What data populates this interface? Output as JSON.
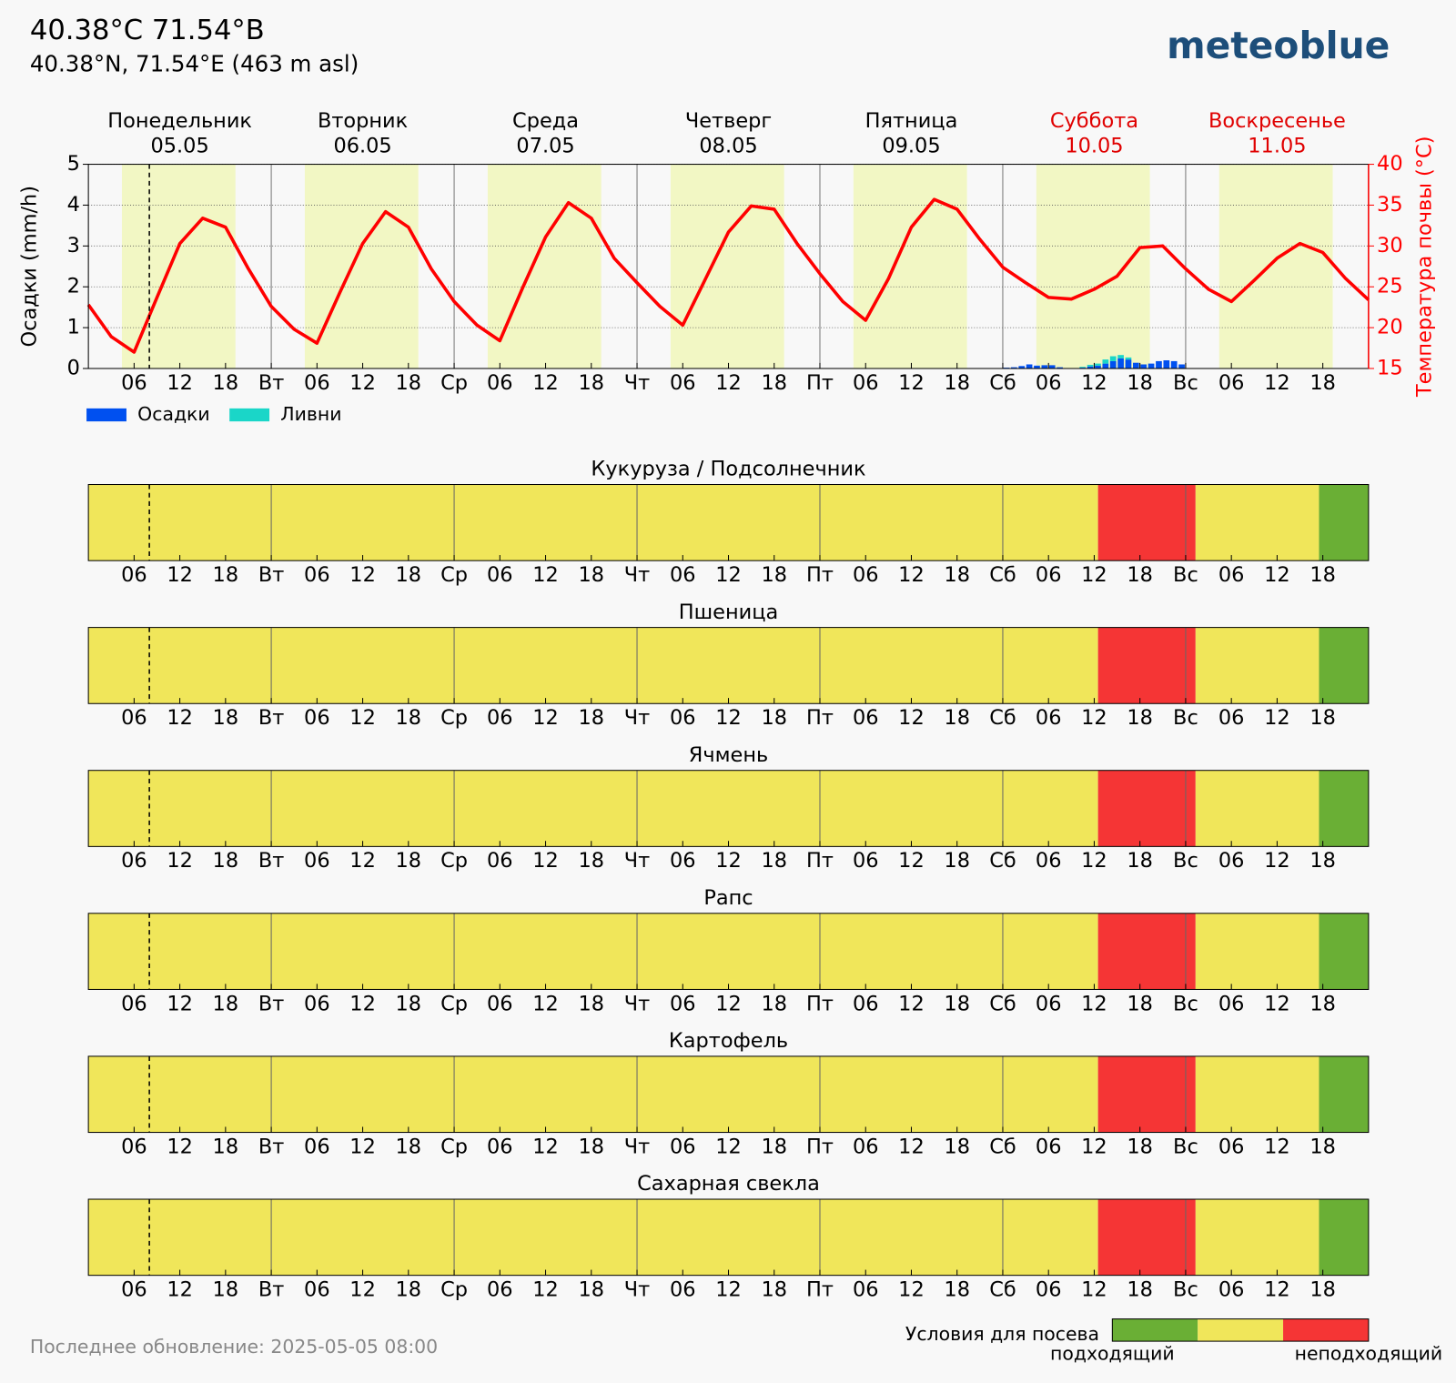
{
  "header": {
    "title": "40.38°C 71.54°В",
    "subtitle": "40.38°N, 71.54°E (463 m asl)",
    "logo": "meteoblue",
    "updated": "Последнее обновление: 2025-05-05 08:00"
  },
  "chart_data": [
    {
      "type": "combo",
      "day_names": [
        "Понедельник",
        "Вторник",
        "Среда",
        "Четверг",
        "Пятница",
        "Суббота",
        "Воскресенье"
      ],
      "day_dates": [
        "05.05",
        "06.05",
        "07.05",
        "08.05",
        "09.05",
        "10.05",
        "11.05"
      ],
      "day_colors": [
        "#000000",
        "#000000",
        "#000000",
        "#000000",
        "#000000",
        "#e00000",
        "#e00000"
      ],
      "daylight": [
        [
          4.4,
          19.3
        ],
        [
          28.4,
          43.3
        ],
        [
          52.4,
          67.3
        ],
        [
          76.4,
          91.3
        ],
        [
          100.4,
          115.3
        ],
        [
          124.4,
          139.3
        ],
        [
          148.4,
          163.3
        ]
      ],
      "daylight_color": "#f2f7c4",
      "now": 8,
      "xlim": [
        0,
        168
      ],
      "xticks": [
        {
          "value": 6,
          "label": "06"
        },
        12,
        18,
        {
          "value": 24,
          "label": "Вт"
        },
        {
          "value": 30,
          "label": "06"
        },
        {
          "value": 36,
          "label": "12"
        },
        {
          "value": 42,
          "label": "18"
        },
        {
          "value": 48,
          "label": "Ср"
        },
        {
          "value": 54,
          "label": "06"
        },
        {
          "value": 60,
          "label": "12"
        },
        {
          "value": 66,
          "label": "18"
        },
        {
          "value": 72,
          "label": "Чт"
        },
        {
          "value": 78,
          "label": "06"
        },
        {
          "value": 84,
          "label": "12"
        },
        {
          "value": 90,
          "label": "18"
        },
        {
          "value": 96,
          "label": "Пт"
        },
        {
          "value": 102,
          "label": "06"
        },
        {
          "value": 108,
          "label": "12"
        },
        {
          "value": 114,
          "label": "18"
        },
        {
          "value": 120,
          "label": "Сб"
        },
        {
          "value": 126,
          "label": "06"
        },
        {
          "value": 132,
          "label": "12"
        },
        {
          "value": 138,
          "label": "18"
        },
        {
          "value": 144,
          "label": "Вс"
        },
        {
          "value": 150,
          "label": "06"
        },
        {
          "value": 156,
          "label": "12"
        },
        {
          "value": 162,
          "label": "18"
        }
      ],
      "xgrid": [
        24,
        48,
        72,
        96,
        120,
        144
      ],
      "ylabel": "Осадки (mm/h)",
      "ylim": [
        0,
        5
      ],
      "yticks": [
        0,
        1,
        2,
        3,
        4,
        5
      ],
      "y2label": "Температура почвы (°C)",
      "y2lim": [
        15,
        40
      ],
      "y2ticks": [
        15,
        20,
        25,
        30,
        35,
        40
      ],
      "y2color": "#ff0000",
      "grid": true,
      "series": [
        {
          "name": "Осадки",
          "type": "bar",
          "color": "#0050f0",
          "x": [
            120,
            121,
            122,
            123,
            124,
            125,
            126,
            127,
            128,
            129,
            130,
            131,
            132,
            133,
            134,
            135,
            136,
            137,
            138,
            139,
            140,
            141,
            142,
            143
          ],
          "values": [
            0.02,
            0.03,
            0.06,
            0.1,
            0.07,
            0.08,
            0.08,
            0.03,
            0,
            0,
            0.02,
            0.05,
            0.07,
            0.12,
            0.18,
            0.25,
            0.22,
            0.14,
            0.1,
            0.12,
            0.18,
            0.2,
            0.18,
            0.1
          ]
        },
        {
          "name": "Ливни",
          "type": "bar",
          "color": "#1ad6c8",
          "x": [
            120,
            121,
            122,
            123,
            124,
            125,
            126,
            127,
            128,
            129,
            130,
            131,
            132,
            133,
            134,
            135,
            136,
            137,
            138,
            139,
            140,
            141,
            142,
            143
          ],
          "values": [
            0,
            0,
            0,
            0,
            0,
            0,
            0,
            0,
            0,
            0,
            0.02,
            0.04,
            0.05,
            0.1,
            0.12,
            0.08,
            0.05,
            0,
            0,
            0,
            0,
            0,
            0,
            0
          ]
        },
        {
          "type": "line",
          "axis": "y2",
          "color": "#ff0000",
          "x": [
            0,
            3,
            6,
            9,
            12,
            15,
            18,
            21,
            24,
            27,
            30,
            33,
            36,
            39,
            42,
            45,
            48,
            51,
            54,
            57,
            60,
            63,
            66,
            69,
            72,
            75,
            78,
            81,
            84,
            87,
            90,
            93,
            96,
            99,
            102,
            105,
            108,
            111,
            114,
            117,
            120,
            123,
            126,
            129,
            132,
            135,
            138,
            141,
            144,
            147,
            150,
            153,
            156,
            159,
            162,
            165,
            168
          ],
          "values": [
            22.8,
            18.9,
            17.0,
            23.7,
            30.3,
            33.4,
            32.3,
            27.2,
            22.6,
            19.8,
            18.1,
            24.3,
            30.3,
            34.2,
            32.3,
            27.2,
            23.2,
            20.3,
            18.4,
            24.9,
            31.1,
            35.3,
            33.4,
            28.5,
            25.5,
            22.6,
            20.3,
            26.0,
            31.7,
            34.9,
            34.5,
            30.3,
            26.6,
            23.2,
            20.9,
            26.0,
            32.3,
            35.7,
            34.5,
            30.8,
            27.4,
            25.5,
            23.7,
            23.5,
            24.7,
            26.3,
            29.8,
            30.0,
            27.2,
            24.7,
            23.2,
            25.8,
            28.5,
            30.3,
            29.2,
            26.0,
            23.4
          ]
        }
      ]
    },
    {
      "type": "strip",
      "title": "Кукуруза / Подсолнечник",
      "bins": [
        0,
        132.5,
        145.3,
        161.5,
        168
      ],
      "values": [
        1,
        2,
        1,
        0
      ]
    },
    {
      "type": "strip",
      "title": "Пшеница",
      "bins": [
        0,
        132.5,
        145.3,
        161.5,
        168
      ],
      "values": [
        1,
        2,
        1,
        0
      ]
    },
    {
      "type": "strip",
      "title": "Ячмень",
      "bins": [
        0,
        132.5,
        145.3,
        161.5,
        168
      ],
      "values": [
        1,
        2,
        1,
        0
      ]
    },
    {
      "type": "strip",
      "title": "Рапс",
      "bins": [
        0,
        132.5,
        145.3,
        161.5,
        168
      ],
      "values": [
        1,
        2,
        1,
        0
      ]
    },
    {
      "type": "strip",
      "title": "Картофель",
      "bins": [
        0,
        132.5,
        145.3,
        161.5,
        168
      ],
      "values": [
        1,
        2,
        1,
        0
      ]
    },
    {
      "type": "strip",
      "title": "Сахарная свекла",
      "bins": [
        0,
        132.5,
        145.3,
        161.5,
        168
      ],
      "values": [
        1,
        2,
        1,
        0
      ]
    }
  ],
  "legend": {
    "title": "Условия для посева",
    "colors": [
      "#6aaf35",
      "#f0e65a",
      "#f53535"
    ],
    "low_label": "подходящий",
    "high_label": "неподходящий"
  }
}
